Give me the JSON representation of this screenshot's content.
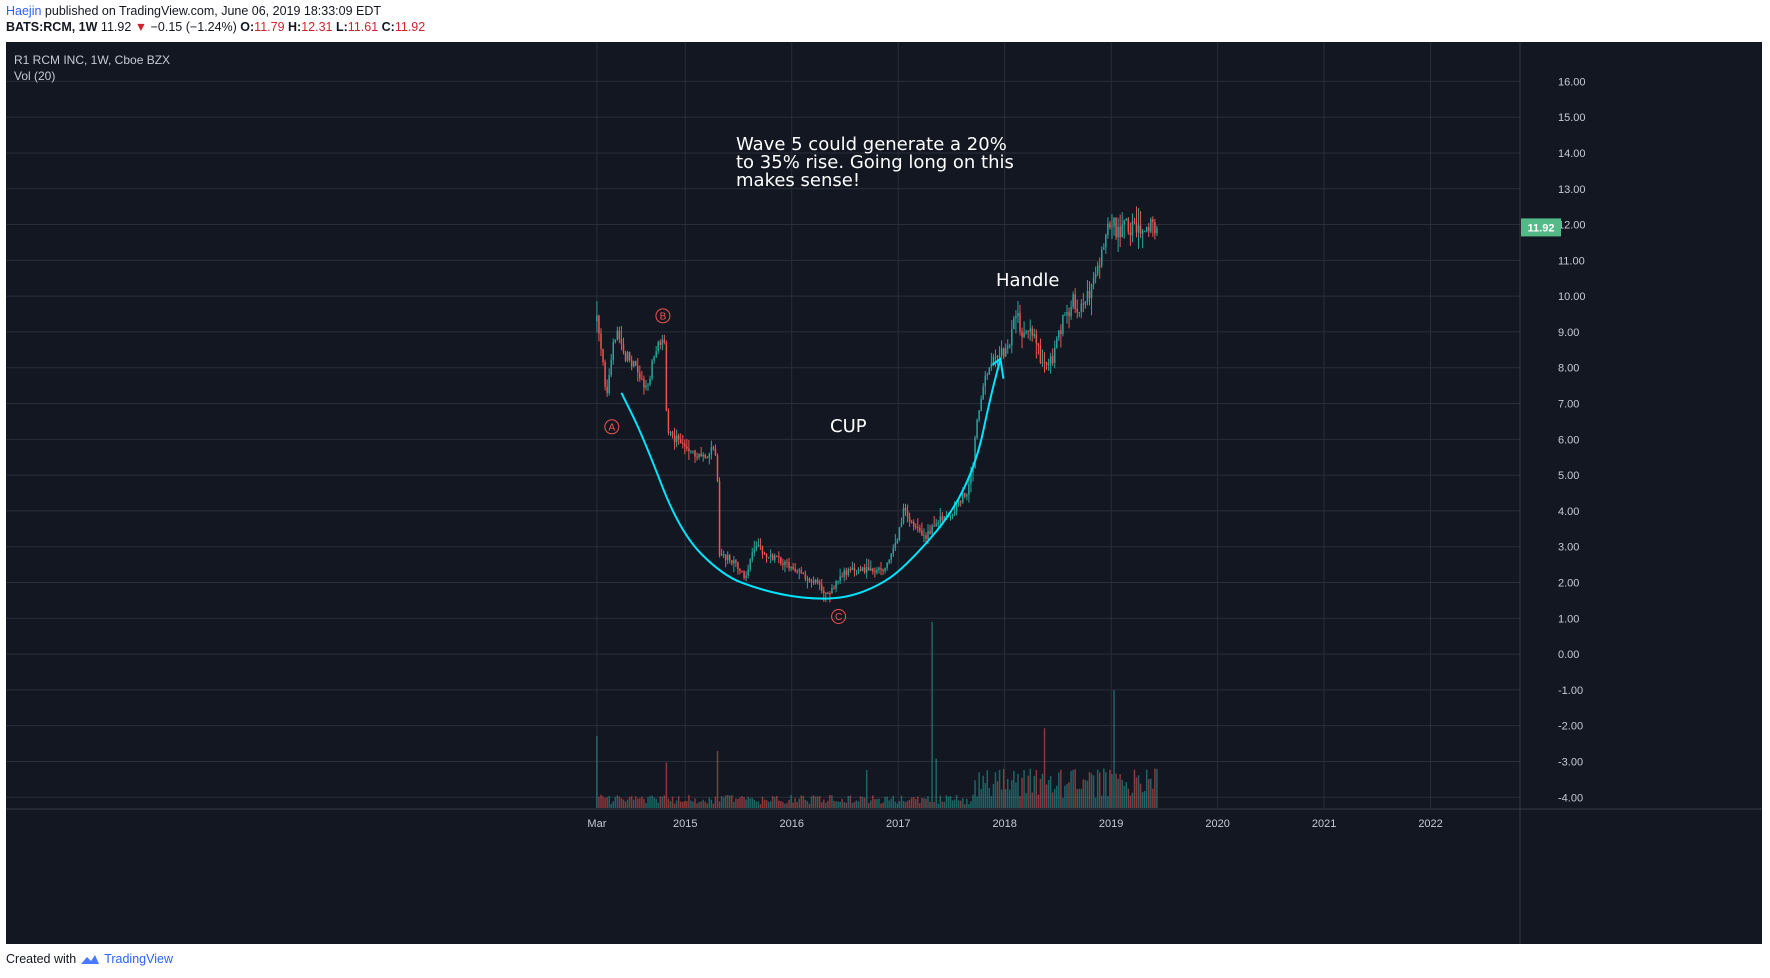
{
  "header": {
    "publisher": "Haejin",
    "published_text": "published on TradingView.com, June 06, 2019 18:33:09 EDT",
    "symbol": "BATS:RCM, 1W",
    "last": "11.92",
    "change": "−0.15 (−1.24%)",
    "o_label": "O:",
    "o_value": "11.79",
    "h_label": "H:",
    "h_value": "12.31",
    "l_label": "L:",
    "l_value": "11.61",
    "c_label": "C:",
    "c_value": "11.92"
  },
  "legend": {
    "title": "R1 RCM INC, 1W, Cboe BZX",
    "volume": "Vol (20)"
  },
  "footer": {
    "created_with": "Created with",
    "brand": "TradingView"
  },
  "colors": {
    "background": "#131722",
    "grid": "#2a2e39",
    "up": "#26a69a",
    "down": "#ef5350",
    "curve": "#00e5ff",
    "price_label": "#53b987"
  },
  "chart_data": {
    "type": "candlestick",
    "title": "R1 RCM INC, 1W, Cboe BZX",
    "y_axis": {
      "ticks": [
        16,
        15,
        14,
        13,
        12,
        11,
        10,
        9,
        8,
        7,
        6,
        5,
        4,
        3,
        2,
        1,
        0,
        -1,
        -2,
        -3,
        -4
      ],
      "tick_labels": [
        "16.00",
        "15.00",
        "14.00",
        "13.00",
        "12.00",
        "11.00",
        "10.00",
        "9.00",
        "8.00",
        "7.00",
        "6.00",
        "5.00",
        "4.00",
        "3.00",
        "2.00",
        "1.00",
        "0.00",
        "-1.00",
        "-2.00",
        "-3.00",
        "-4.00"
      ],
      "range": [
        -4.3,
        17.1
      ],
      "position": "right",
      "last_price": 11.92,
      "last_price_label": "11.92"
    },
    "x_axis": {
      "labels": [
        {
          "label": "Mar",
          "t": 2014.17
        },
        {
          "label": "2015",
          "t": 2015.0
        },
        {
          "label": "2016",
          "t": 2016.0
        },
        {
          "label": "2017",
          "t": 2017.0
        },
        {
          "label": "2018",
          "t": 2018.0
        },
        {
          "label": "2019",
          "t": 2019.0
        },
        {
          "label": "2020",
          "t": 2020.0
        },
        {
          "label": "2021",
          "t": 2021.0
        },
        {
          "label": "2022",
          "t": 2022.0
        }
      ],
      "range": [
        2008.62,
        2022.84
      ],
      "bar_start": 2014.17,
      "bar_end": 2019.43
    },
    "price_path": [
      [
        2014.17,
        9.3
      ],
      [
        2014.21,
        8.4
      ],
      [
        2014.26,
        7.3
      ],
      [
        2014.3,
        8.3
      ],
      [
        2014.36,
        8.9
      ],
      [
        2014.45,
        8.3
      ],
      [
        2014.55,
        7.9
      ],
      [
        2014.62,
        7.3
      ],
      [
        2014.7,
        8.2
      ],
      [
        2014.76,
        8.7
      ],
      [
        2014.8,
        8.9
      ],
      [
        2014.83,
        6.2
      ],
      [
        2014.9,
        6.0
      ],
      [
        2015.0,
        5.9
      ],
      [
        2015.1,
        5.6
      ],
      [
        2015.2,
        5.4
      ],
      [
        2015.26,
        5.8
      ],
      [
        2015.3,
        5.5
      ],
      [
        2015.31,
        2.7
      ],
      [
        2015.4,
        2.7
      ],
      [
        2015.5,
        2.4
      ],
      [
        2015.56,
        2.1
      ],
      [
        2015.66,
        3.1
      ],
      [
        2015.75,
        2.8
      ],
      [
        2015.9,
        2.6
      ],
      [
        2016.05,
        2.3
      ],
      [
        2016.25,
        1.95
      ],
      [
        2016.35,
        1.6
      ],
      [
        2016.45,
        2.2
      ],
      [
        2016.6,
        2.4
      ],
      [
        2016.8,
        2.3
      ],
      [
        2016.9,
        2.5
      ],
      [
        2017.0,
        3.3
      ],
      [
        2017.05,
        4.0
      ],
      [
        2017.15,
        3.6
      ],
      [
        2017.25,
        3.2
      ],
      [
        2017.35,
        3.7
      ],
      [
        2017.5,
        3.9
      ],
      [
        2017.6,
        4.4
      ],
      [
        2017.65,
        4.5
      ],
      [
        2017.7,
        5.2
      ],
      [
        2017.73,
        6.4
      ],
      [
        2017.78,
        7.3
      ],
      [
        2017.85,
        7.9
      ],
      [
        2017.95,
        8.4
      ],
      [
        2018.05,
        8.6
      ],
      [
        2018.1,
        9.7
      ],
      [
        2018.17,
        8.8
      ],
      [
        2018.25,
        9.0
      ],
      [
        2018.35,
        8.2
      ],
      [
        2018.45,
        8.3
      ],
      [
        2018.55,
        9.3
      ],
      [
        2018.65,
        9.9
      ],
      [
        2018.72,
        9.6
      ],
      [
        2018.8,
        10.2
      ],
      [
        2018.9,
        11.1
      ],
      [
        2018.95,
        11.6
      ],
      [
        2019.0,
        12.2
      ],
      [
        2019.03,
        11.9
      ]
    ],
    "volume_series_note": "weekly volume bars in lower pane",
    "volume_spikes": [
      {
        "t": 2014.17,
        "level": 0.38
      },
      {
        "t": 2014.83,
        "level": 0.24
      },
      {
        "t": 2015.3,
        "level": 0.3
      },
      {
        "t": 2016.7,
        "level": 0.2
      },
      {
        "t": 2017.32,
        "level": 0.98
      },
      {
        "t": 2017.35,
        "level": 0.26
      },
      {
        "t": 2018.38,
        "level": 0.42
      },
      {
        "t": 2019.03,
        "level": 0.62
      }
    ],
    "annotations": {
      "wave_text_lines": [
        "Wave 5 could generate a 20%",
        "to 35% rise. Going long on this",
        "makes sense!"
      ],
      "cup": "CUP",
      "handle": "Handle",
      "wave_labels": [
        {
          "label": "A",
          "t": 2014.31,
          "price": 6.35
        },
        {
          "label": "B",
          "t": 2014.79,
          "price": 9.45
        },
        {
          "label": "C",
          "t": 2016.44,
          "price": 1.05
        }
      ]
    },
    "cup_curve": [
      [
        2014.4,
        7.3
      ],
      [
        2014.6,
        6.1
      ],
      [
        2014.95,
        3.4
      ],
      [
        2015.35,
        2.2
      ],
      [
        2015.7,
        1.8
      ],
      [
        2016.1,
        1.55
      ],
      [
        2016.5,
        1.55
      ],
      [
        2016.85,
        1.95
      ],
      [
        2017.1,
        2.55
      ],
      [
        2017.5,
        3.9
      ],
      [
        2017.74,
        5.4
      ],
      [
        2017.86,
        7.1
      ],
      [
        2017.96,
        8.25
      ]
    ]
  }
}
